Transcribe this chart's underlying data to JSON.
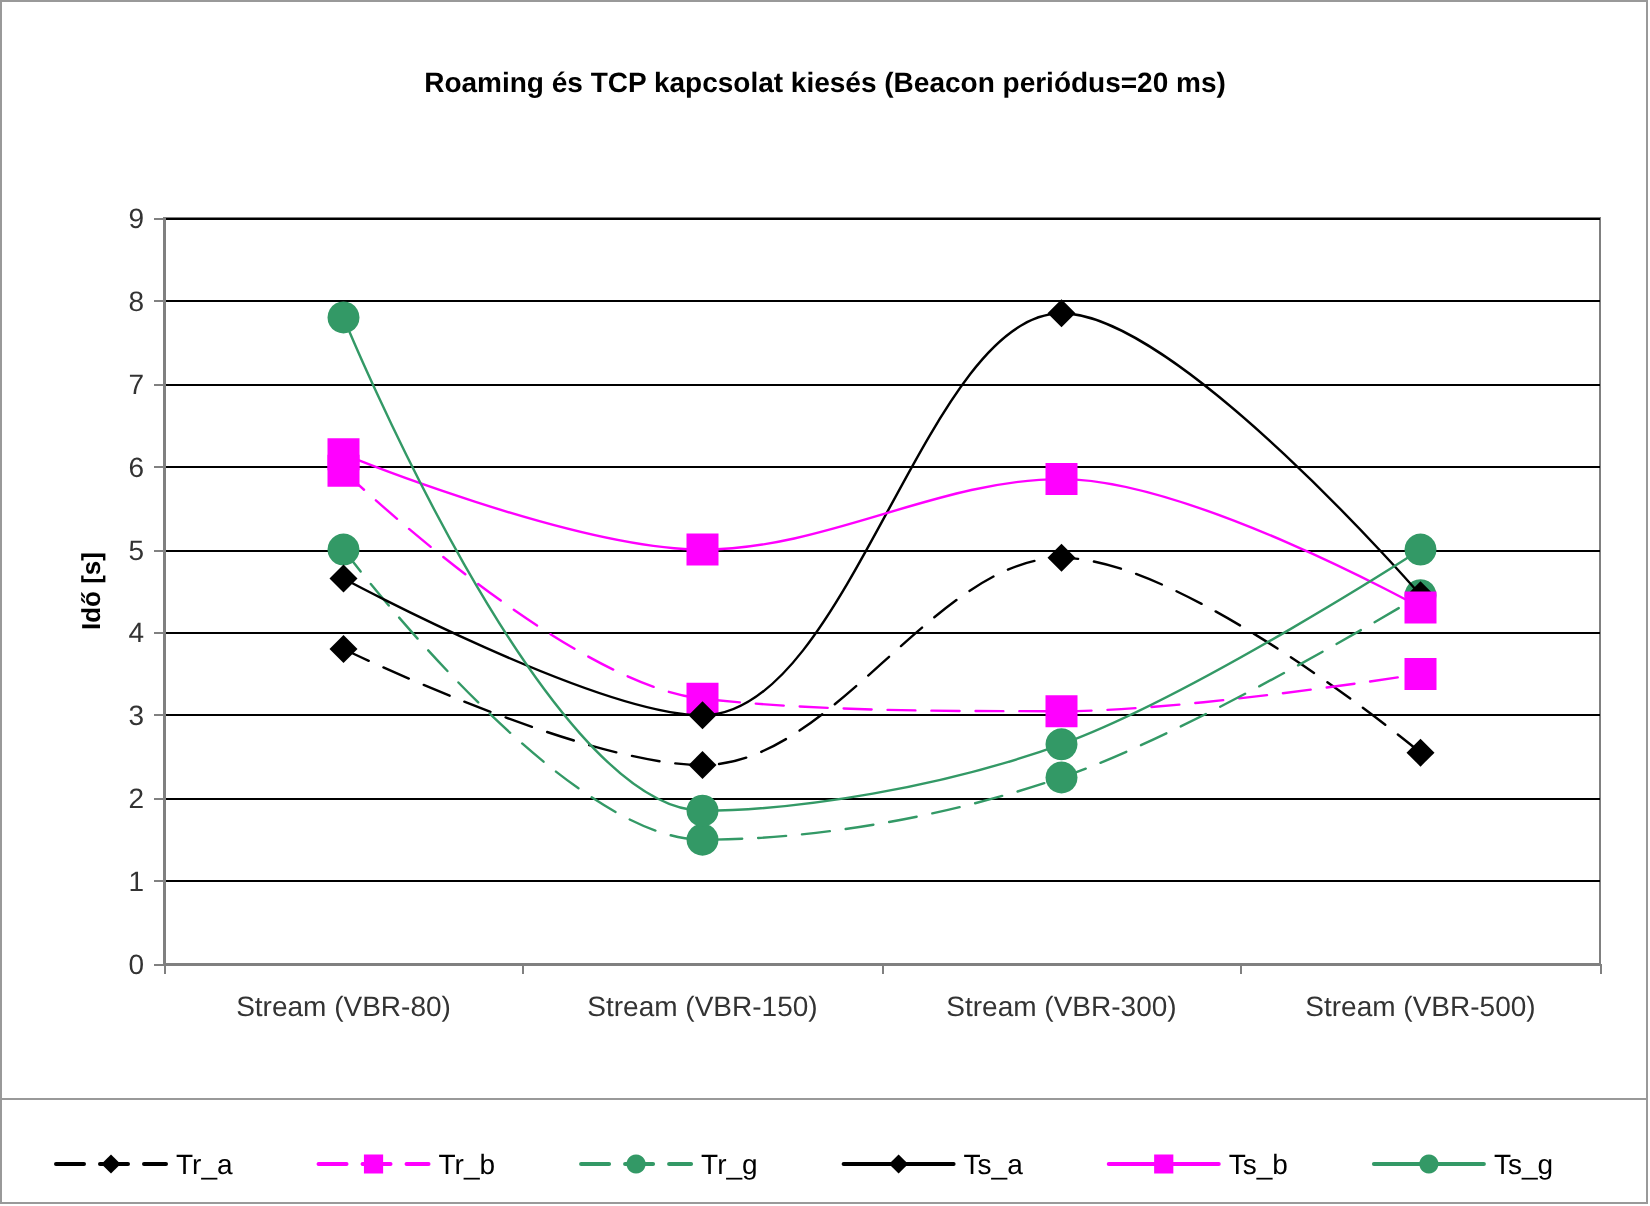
{
  "chart_data": {
    "type": "line",
    "title": "Roaming és TCP kapcsolat kiesés (Beacon periódus=20 ms)",
    "ylabel": "Idő [s]",
    "categories": [
      "Stream (VBR-80)",
      "Stream (VBR-150)",
      "Stream (VBR-300)",
      "Stream (VBR-500)"
    ],
    "series": [
      {
        "name": "Tr_a",
        "color": "#000000",
        "marker": "diamond",
        "line_style": "dashed",
        "values": [
          3.8,
          2.4,
          4.9,
          2.55
        ]
      },
      {
        "name": "Tr_b",
        "color": "#ff00ff",
        "marker": "square",
        "line_style": "dashed",
        "values": [
          5.95,
          3.2,
          3.05,
          3.5
        ]
      },
      {
        "name": "Tr_g",
        "color": "#339966",
        "marker": "circle",
        "line_style": "dashed",
        "values": [
          5.0,
          1.5,
          2.25,
          4.45
        ]
      },
      {
        "name": "Ts_a",
        "color": "#000000",
        "marker": "diamond",
        "line_style": "solid",
        "values": [
          4.65,
          3.0,
          7.85,
          4.45
        ]
      },
      {
        "name": "Ts_b",
        "color": "#ff00ff",
        "marker": "square",
        "line_style": "solid",
        "values": [
          6.15,
          5.0,
          5.85,
          4.3
        ]
      },
      {
        "name": "Ts_g",
        "color": "#339966",
        "marker": "circle",
        "line_style": "solid",
        "values": [
          7.8,
          1.85,
          2.65,
          5.0
        ]
      }
    ],
    "ylim": [
      0,
      9
    ],
    "yticks": [
      0,
      1,
      2,
      3,
      4,
      5,
      6,
      7,
      8,
      9
    ],
    "grid": "y",
    "legend": "bottom"
  }
}
